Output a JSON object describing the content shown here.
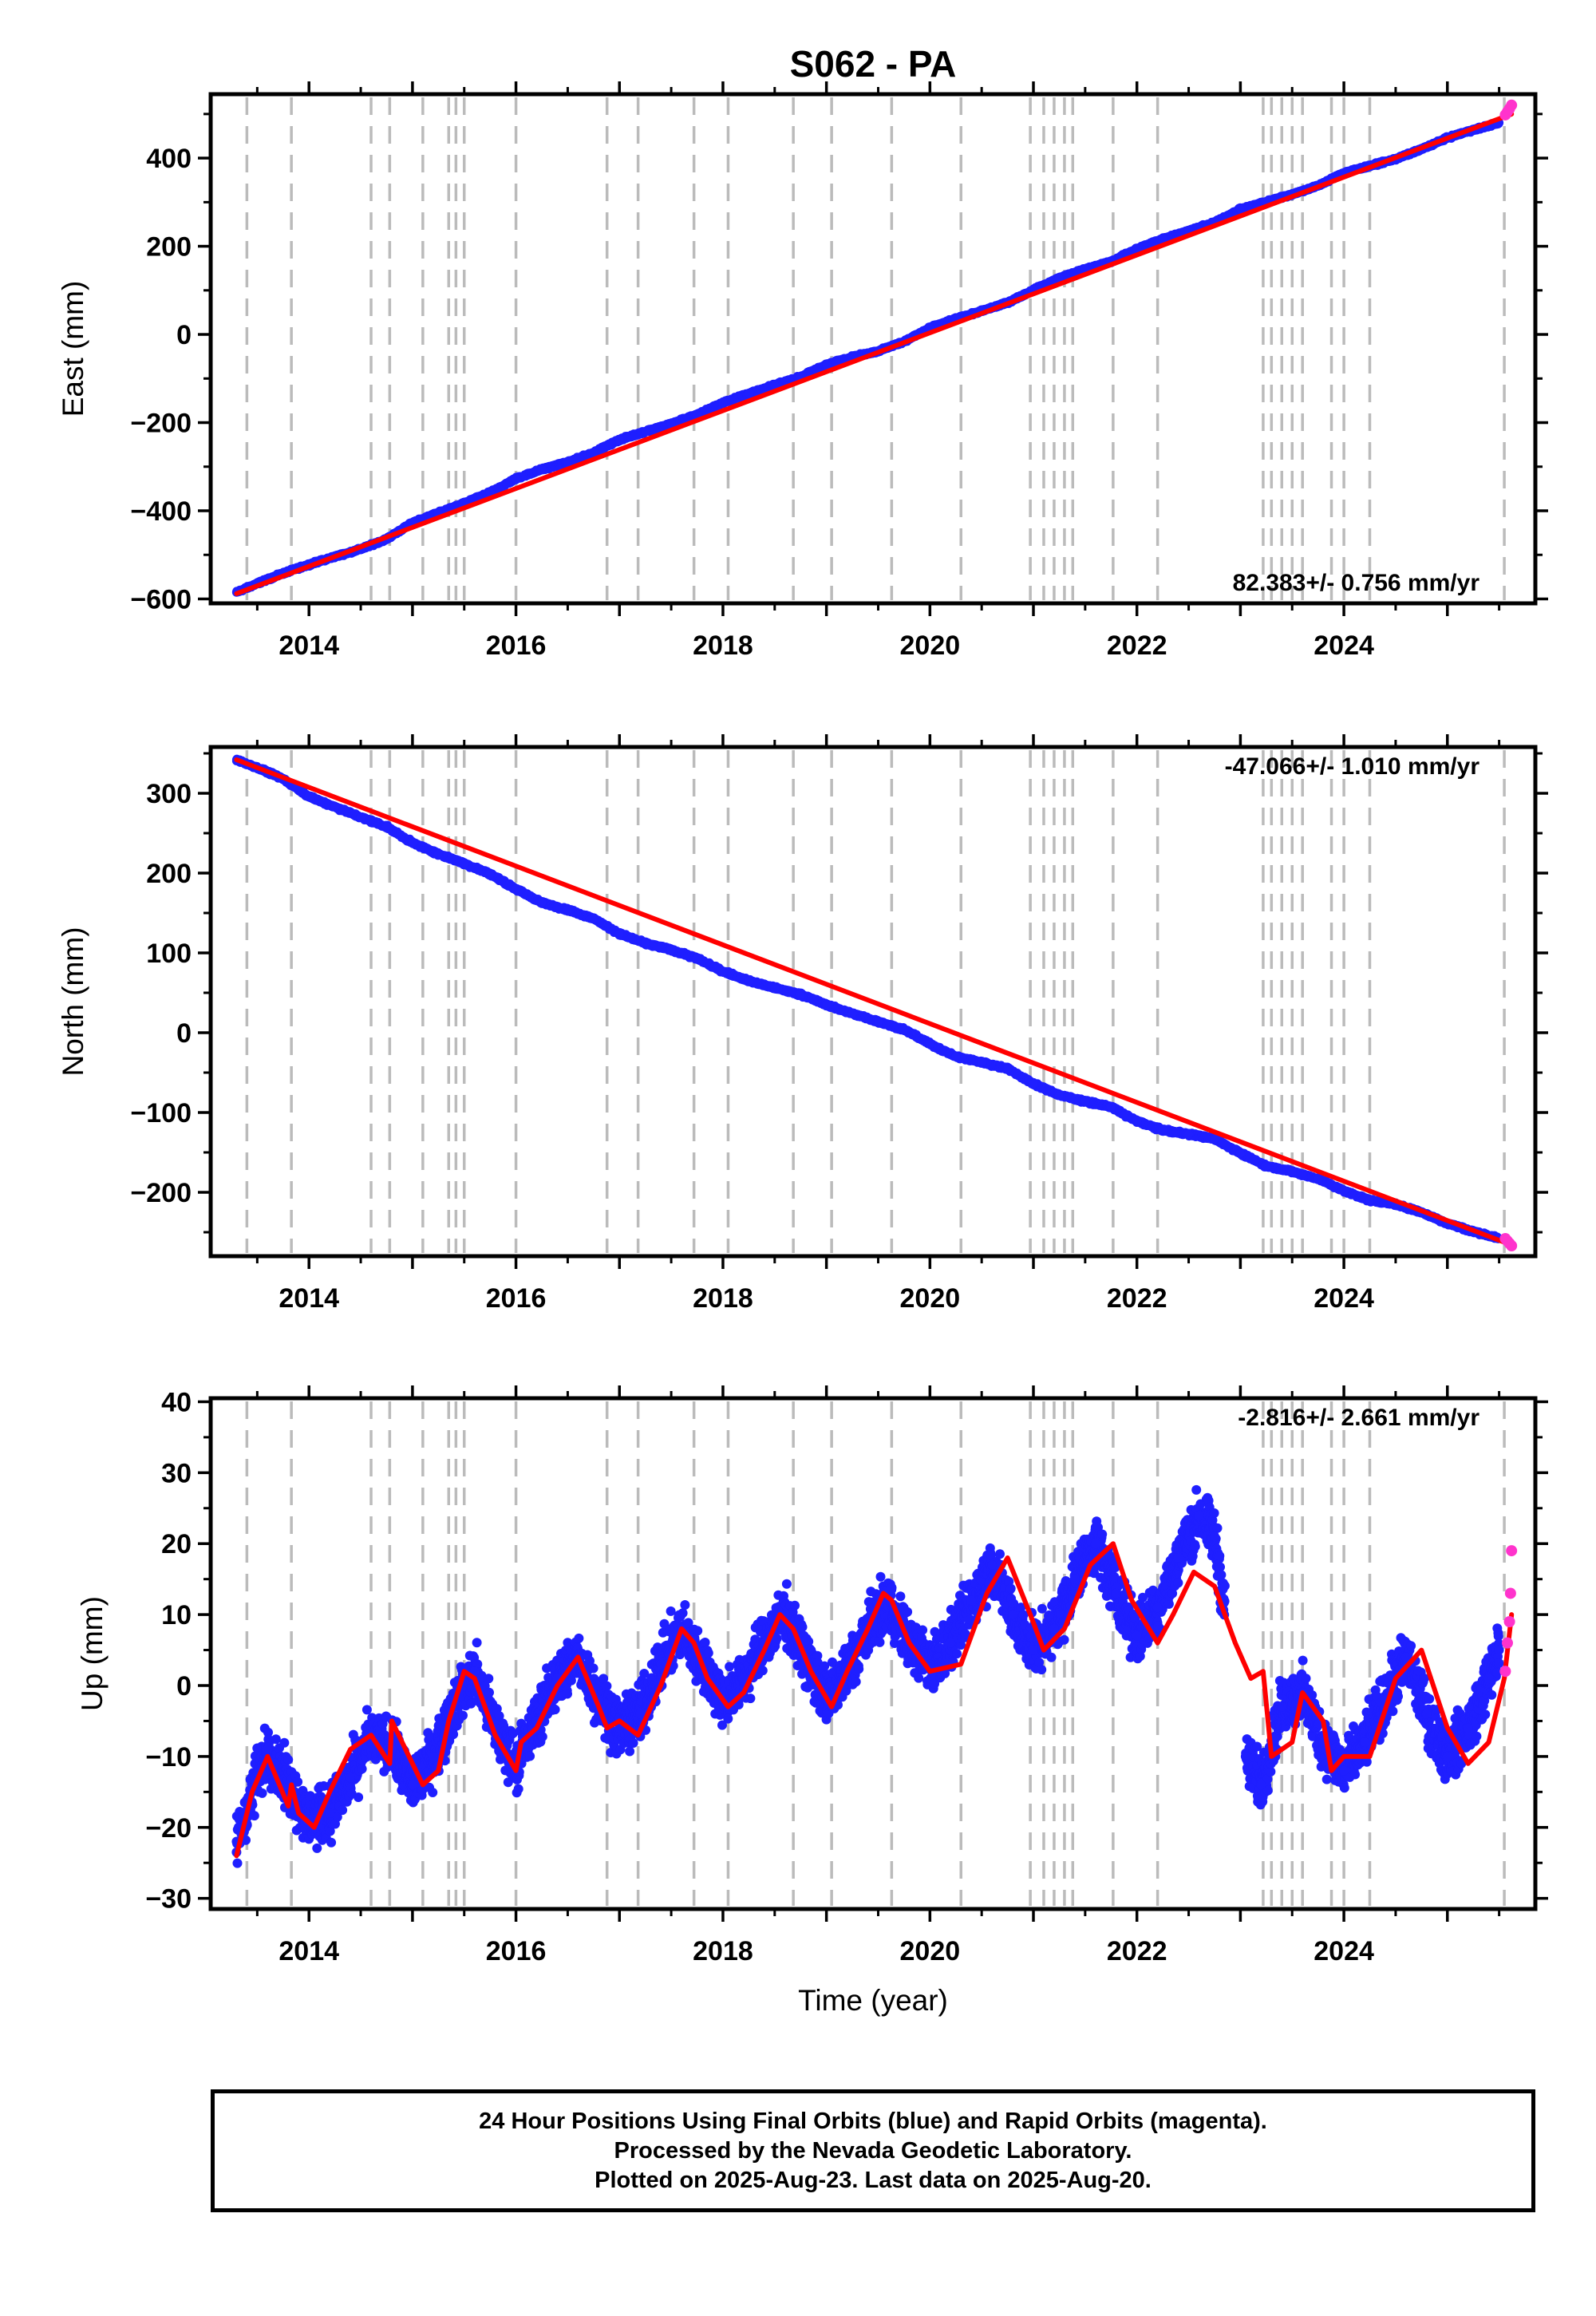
{
  "figure": {
    "title": "S062 - PA"
  },
  "colors": {
    "final_orbits": "#1f1fff",
    "rapid_orbits": "#ff33cc",
    "model_fit": "#ff0000",
    "event_lines": "#bbbbbb",
    "frame": "#000000"
  },
  "caption": {
    "line1": "24 Hour Positions Using Final Orbits (blue) and Rapid Orbits (magenta).",
    "line2": "Processed by the Nevada Geodetic Laboratory.",
    "line3": "Plotted on 2025-Aug-23. Last data on 2025-Aug-20."
  },
  "chart_data": [
    {
      "type": "scatter",
      "component": "east",
      "ylabel": "East (mm)",
      "xlabel": "",
      "x_range": [
        2013.05,
        2025.85
      ],
      "ylim": [
        -610,
        545
      ],
      "xticks": [
        2014,
        2016,
        2018,
        2020,
        2022,
        2024
      ],
      "xtick_labels": [
        "2014",
        "2016",
        "2018",
        "2020",
        "2022",
        "2024"
      ],
      "yticks": [
        -600,
        -400,
        -200,
        0,
        200,
        400
      ],
      "ytick_labels": [
        "−600",
        "−400",
        "−200",
        "0",
        "200",
        "400"
      ],
      "rate_text": "82.383+/- 0.756 mm/yr",
      "rate_position": "bottom-right",
      "grid": false,
      "event_lines": [
        2013.4,
        2013.83,
        2014.6,
        2014.78,
        2015.1,
        2015.35,
        2015.42,
        2015.5,
        2016.0,
        2016.88,
        2017.18,
        2017.72,
        2018.05,
        2018.68,
        2019.05,
        2019.63,
        2020.3,
        2020.97,
        2021.1,
        2021.2,
        2021.3,
        2021.38,
        2021.77,
        2022.2,
        2023.22,
        2023.3,
        2023.4,
        2023.5,
        2023.6,
        2023.88,
        2024.0,
        2024.25,
        2025.55
      ],
      "series": [
        {
          "name": "Final Orbits (blue)",
          "type": "scatter",
          "x": [
            2013.3,
            2013.5,
            2013.75,
            2014.0,
            2014.25,
            2014.5,
            2014.75,
            2015.0,
            2015.25,
            2015.5,
            2015.75,
            2016.0,
            2016.25,
            2016.5,
            2016.75,
            2017.0,
            2017.25,
            2017.5,
            2017.75,
            2018.0,
            2018.25,
            2018.5,
            2018.75,
            2019.0,
            2019.25,
            2019.5,
            2019.75,
            2020.0,
            2020.25,
            2020.5,
            2020.75,
            2021.0,
            2021.25,
            2021.5,
            2021.75,
            2022.0,
            2022.25,
            2022.5,
            2022.75,
            2023.0,
            2023.25,
            2023.5,
            2023.75,
            2024.0,
            2024.25,
            2024.5,
            2024.75,
            2025.0,
            2025.25,
            2025.5
          ],
          "y": [
            -585,
            -565,
            -542,
            -522,
            -504,
            -487,
            -464,
            -427,
            -405,
            -383,
            -359,
            -327,
            -306,
            -290,
            -268,
            -239,
            -220,
            -203,
            -182,
            -155,
            -134,
            -115,
            -96,
            -69,
            -51,
            -38,
            -16,
            15,
            35,
            53,
            72,
            101,
            128,
            148,
            165,
            194,
            217,
            235,
            254,
            284,
            301,
            318,
            337,
            367,
            382,
            398,
            420,
            446,
            464,
            480
          ]
        },
        {
          "name": "Rapid Orbits (magenta)",
          "type": "scatter",
          "x": [
            2025.56,
            2025.58,
            2025.6,
            2025.62
          ],
          "y": [
            498,
            505,
            512,
            520
          ]
        },
        {
          "name": "Model fit",
          "type": "line",
          "x": [
            2013.3,
            2025.62
          ],
          "y": [
            -588,
            500
          ]
        }
      ]
    },
    {
      "type": "scatter",
      "component": "north",
      "ylabel": "North (mm)",
      "xlabel": "",
      "x_range": [
        2013.05,
        2025.85
      ],
      "ylim": [
        -280,
        358
      ],
      "xticks": [
        2014,
        2016,
        2018,
        2020,
        2022,
        2024
      ],
      "xtick_labels": [
        "2014",
        "2016",
        "2018",
        "2020",
        "2022",
        "2024"
      ],
      "yticks": [
        -200,
        -100,
        0,
        100,
        200,
        300
      ],
      "ytick_labels": [
        "−200",
        "−100",
        "0",
        "100",
        "200",
        "300"
      ],
      "rate_text": "-47.066+/- 1.010 mm/yr",
      "rate_position": "top-right",
      "grid": false,
      "event_lines": [
        2013.4,
        2013.83,
        2014.6,
        2014.78,
        2015.1,
        2015.35,
        2015.42,
        2015.5,
        2016.0,
        2016.88,
        2017.18,
        2017.72,
        2018.05,
        2018.68,
        2019.05,
        2019.63,
        2020.3,
        2020.97,
        2021.1,
        2021.2,
        2021.3,
        2021.38,
        2021.77,
        2022.2,
        2023.22,
        2023.3,
        2023.4,
        2023.5,
        2023.6,
        2023.88,
        2024.0,
        2024.25,
        2025.55
      ],
      "series": [
        {
          "name": "Final Orbits (blue)",
          "type": "scatter",
          "x": [
            2013.3,
            2013.5,
            2013.75,
            2014.0,
            2014.25,
            2014.5,
            2014.75,
            2015.0,
            2015.25,
            2015.5,
            2015.75,
            2016.0,
            2016.25,
            2016.5,
            2016.75,
            2017.0,
            2017.25,
            2017.5,
            2017.75,
            2018.0,
            2018.25,
            2018.5,
            2018.75,
            2019.0,
            2019.25,
            2019.5,
            2019.75,
            2020.0,
            2020.25,
            2020.5,
            2020.75,
            2021.0,
            2021.25,
            2021.5,
            2021.75,
            2022.0,
            2022.25,
            2022.5,
            2022.75,
            2023.0,
            2023.25,
            2023.5,
            2023.75,
            2024.0,
            2024.25,
            2024.5,
            2024.75,
            2025.0,
            2025.25,
            2025.5
          ],
          "y": [
            342,
            332,
            318,
            296,
            283,
            270,
            258,
            238,
            224,
            212,
            199,
            180,
            163,
            154,
            143,
            124,
            112,
            104,
            93,
            77,
            65,
            56,
            48,
            35,
            24,
            14,
            4,
            -14,
            -30,
            -37,
            -45,
            -64,
            -78,
            -86,
            -93,
            -111,
            -122,
            -127,
            -133,
            -151,
            -167,
            -174,
            -183,
            -198,
            -210,
            -215,
            -225,
            -239,
            -249,
            -258
          ]
        },
        {
          "name": "Rapid Orbits (magenta)",
          "type": "scatter",
          "x": [
            2025.56,
            2025.58,
            2025.6,
            2025.62
          ],
          "y": [
            -258,
            -261,
            -264,
            -267
          ]
        },
        {
          "name": "Model fit",
          "type": "line",
          "x": [
            2013.3,
            2025.62
          ],
          "y": [
            342,
            -266
          ]
        }
      ]
    },
    {
      "type": "scatter",
      "component": "up",
      "ylabel": "Up (mm)",
      "xlabel": "Time (year)",
      "x_range": [
        2013.05,
        2025.85
      ],
      "ylim": [
        -31.5,
        40.5
      ],
      "xticks": [
        2014,
        2016,
        2018,
        2020,
        2022,
        2024
      ],
      "xtick_labels": [
        "2014",
        "2016",
        "2018",
        "2020",
        "2022",
        "2024"
      ],
      "yticks": [
        -30,
        -20,
        -10,
        0,
        10,
        20,
        30,
        40
      ],
      "ytick_labels": [
        "−30",
        "−20",
        "−10",
        "0",
        "10",
        "20",
        "30",
        "40"
      ],
      "rate_text": "-2.816+/- 2.661 mm/yr",
      "rate_position": "top-right",
      "grid": false,
      "event_lines": [
        2013.4,
        2013.83,
        2014.6,
        2014.78,
        2015.1,
        2015.35,
        2015.42,
        2015.5,
        2016.0,
        2016.88,
        2017.18,
        2017.72,
        2018.05,
        2018.68,
        2019.05,
        2019.63,
        2020.3,
        2020.97,
        2021.1,
        2021.2,
        2021.3,
        2021.38,
        2021.77,
        2022.2,
        2023.22,
        2023.3,
        2023.4,
        2023.5,
        2023.6,
        2023.88,
        2024.0,
        2024.25,
        2025.55
      ],
      "series": [
        {
          "name": "Final Orbits (blue)",
          "type": "scatter",
          "x": [
            2013.3,
            2013.45,
            2013.6,
            2013.8,
            2014.0,
            2014.2,
            2014.4,
            2014.6,
            2014.8,
            2015.0,
            2015.2,
            2015.4,
            2015.6,
            2015.8,
            2016.0,
            2016.2,
            2016.4,
            2016.6,
            2016.8,
            2017.0,
            2017.2,
            2017.4,
            2017.6,
            2017.8,
            2018.0,
            2018.2,
            2018.4,
            2018.6,
            2018.8,
            2019.0,
            2019.2,
            2019.4,
            2019.6,
            2019.8,
            2020.0,
            2020.2,
            2020.4,
            2020.6,
            2020.8,
            2021.0,
            2021.2,
            2021.4,
            2021.6,
            2021.8,
            2022.0,
            2022.2,
            2022.4,
            2022.6,
            2022.75,
            2023.05,
            2023.2,
            2023.4,
            2023.6,
            2023.8,
            2024.0,
            2024.2,
            2024.4,
            2024.6,
            2024.8,
            2025.0,
            2025.2,
            2025.4,
            2025.5
          ],
          "y": [
            -22,
            -15,
            -9,
            -14,
            -19,
            -18,
            -13,
            -7,
            -9,
            -14,
            -10,
            -3,
            2,
            -6,
            -11,
            -5,
            1,
            4,
            -2,
            -6,
            -4,
            3,
            8,
            3,
            -2,
            1,
            6,
            10,
            4,
            -2,
            2,
            8,
            12,
            6,
            3,
            6,
            12,
            17,
            10,
            5,
            8,
            15,
            20,
            13,
            7,
            11,
            18,
            24,
            21,
            -10,
            -14,
            -3,
            -1,
            -8,
            -12,
            -8,
            -2,
            4,
            -4,
            -10,
            -6,
            1,
            5
          ]
        },
        {
          "name": "Rapid Orbits (magenta)",
          "type": "scatter",
          "x": [
            2025.56,
            2025.58,
            2025.6,
            2025.61,
            2025.62
          ],
          "y": [
            2,
            6,
            9,
            13,
            19
          ]
        },
        {
          "name": "Model fit",
          "type": "line",
          "x": [
            2013.3,
            2013.45,
            2013.6,
            2013.8,
            2013.83,
            2013.9,
            2014.05,
            2014.2,
            2014.4,
            2014.6,
            2014.78,
            2014.8,
            2015.0,
            2015.1,
            2015.25,
            2015.35,
            2015.5,
            2015.6,
            2015.8,
            2016.0,
            2016.05,
            2016.2,
            2016.4,
            2016.6,
            2016.8,
            2016.88,
            2017.0,
            2017.18,
            2017.4,
            2017.6,
            2017.72,
            2017.85,
            2018.05,
            2018.2,
            2018.4,
            2018.55,
            2018.68,
            2018.85,
            2019.05,
            2019.2,
            2019.4,
            2019.55,
            2019.63,
            2019.8,
            2020.0,
            2020.3,
            2020.55,
            2020.75,
            2020.97,
            2021.1,
            2021.3,
            2021.55,
            2021.77,
            2021.95,
            2022.2,
            2022.35,
            2022.55,
            2022.75,
            2022.95,
            2023.1,
            2023.22,
            2023.3,
            2023.5,
            2023.6,
            2023.8,
            2023.88,
            2024.0,
            2024.25,
            2024.5,
            2024.75,
            2025.0,
            2025.2,
            2025.4,
            2025.55,
            2025.62
          ],
          "y": [
            -24,
            -15,
            -10,
            -17,
            -14,
            -18,
            -20,
            -15,
            -9,
            -7,
            -11,
            -5,
            -11,
            -14,
            -12,
            -5,
            2,
            1,
            -7,
            -12,
            -8,
            -6,
            0,
            4,
            -3,
            -6,
            -5,
            -7,
            0,
            8,
            6,
            1,
            -3,
            -1,
            5,
            10,
            8,
            2,
            -3,
            2,
            8,
            13,
            12,
            6,
            2,
            3,
            13,
            18,
            10,
            5,
            8,
            17,
            20,
            12,
            6,
            10,
            16,
            14,
            6,
            1,
            2,
            -10,
            -8,
            -1,
            -5,
            -12,
            -10,
            -10,
            1,
            5,
            -6,
            -11,
            -8,
            1,
            10
          ]
        }
      ]
    }
  ]
}
